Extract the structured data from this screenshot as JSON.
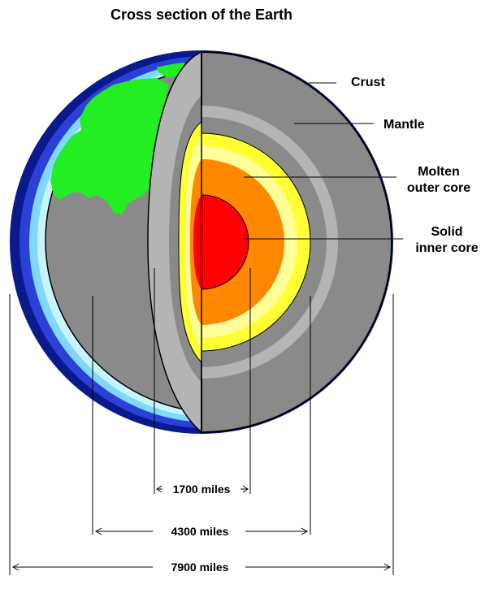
{
  "title": "Cross section of the Earth",
  "labels": {
    "crust": "Crust",
    "mantle": "Mantle",
    "outer_core": [
      "Molten",
      "outer core"
    ],
    "inner_core": [
      "Solid",
      "inner core"
    ]
  },
  "dimensions": {
    "inner": "1700 miles",
    "middle": "4300 miles",
    "outer": "7900 miles"
  },
  "colors": {
    "ocean_dark": "#0a1a8c",
    "ocean_mid": "#2a40d8",
    "ocean_light": "#7fd8ff",
    "ocean_pale": "#c8f4ff",
    "land": "#22ee22",
    "surface_gray": "#8a8a8a",
    "crust": "#b4b4b4",
    "mantle": "#8a8a8a",
    "mantle_light": "#b4b4b4",
    "outer_core_yellow": "#ffff33",
    "outer_core_pale": "#ffff99",
    "outer_core_orange": "#ff8800",
    "inner_core": "#ff0000"
  }
}
